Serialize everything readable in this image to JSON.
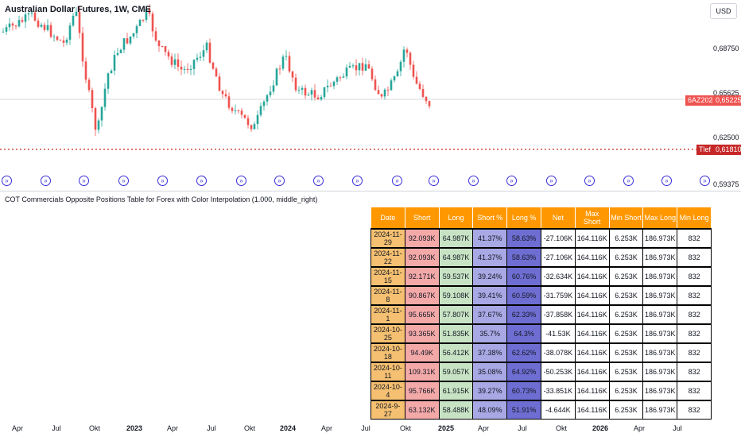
{
  "chart": {
    "title": "Australian Dollar Futures, 1W, CME",
    "currency_button": "USD",
    "price_axis": [
      "0,68750",
      "0,65625",
      "0,62500",
      "0,59375"
    ],
    "last_price_symbol": "6AZ2024",
    "last_price": "0,65225",
    "tlef_label": "Tlef",
    "tlef_price": "0,61810",
    "time_axis": [
      {
        "label": "Apr",
        "bold": false
      },
      {
        "label": "Jul",
        "bold": false
      },
      {
        "label": "Okt",
        "bold": false
      },
      {
        "label": "2023",
        "bold": true
      },
      {
        "label": "Apr",
        "bold": false
      },
      {
        "label": "Jul",
        "bold": false
      },
      {
        "label": "Okt",
        "bold": false
      },
      {
        "label": "2024",
        "bold": true
      },
      {
        "label": "Apr",
        "bold": false
      },
      {
        "label": "Jul",
        "bold": false
      },
      {
        "label": "Okt",
        "bold": false
      },
      {
        "label": "2025",
        "bold": true
      },
      {
        "label": "Apr",
        "bold": false
      },
      {
        "label": "Jul",
        "bold": false
      },
      {
        "label": "Okt",
        "bold": false
      },
      {
        "label": "2026",
        "bold": true
      },
      {
        "label": "Apr",
        "bold": false
      },
      {
        "label": "Jul",
        "bold": false
      }
    ],
    "colors": {
      "up": "#26a69a",
      "down": "#ef5350",
      "tlef": "#c62828",
      "arrow": "#3b2fd6"
    },
    "arrow_icon": "arrow-right-circle-icon"
  },
  "indicator": {
    "title": "COT Commercials Opposite Positions Table for Forex with Color Interpolation (1.000, middle_right)",
    "headers": [
      "Date",
      "Short",
      "Long",
      "Short %",
      "Long %",
      "Net",
      "Max Short",
      "Min Short",
      "Max Long",
      "Min Long"
    ],
    "rows": [
      [
        "2024-11-29",
        "92.093K",
        "64.987K",
        "41.37%",
        "58.63%",
        "-27.106K",
        "164.116K",
        "6.253K",
        "186.973K",
        "832"
      ],
      [
        "2024-11-22",
        "92.093K",
        "64.987K",
        "41.37%",
        "58.63%",
        "-27.106K",
        "164.116K",
        "6.253K",
        "186.973K",
        "832"
      ],
      [
        "2024-11-15",
        "92.171K",
        "59.537K",
        "39.24%",
        "60.76%",
        "-32.634K",
        "164.116K",
        "6.253K",
        "186.973K",
        "832"
      ],
      [
        "2024-11-8",
        "90.867K",
        "59.108K",
        "39.41%",
        "60.59%",
        "-31.759K",
        "164.116K",
        "6.253K",
        "186.973K",
        "832"
      ],
      [
        "2024-11-1",
        "95.665K",
        "57.807K",
        "37.67%",
        "62.33%",
        "-37.858K",
        "164.116K",
        "6.253K",
        "186.973K",
        "832"
      ],
      [
        "2024-10-25",
        "93.365K",
        "51.835K",
        "35.7%",
        "64.3%",
        "-41.53K",
        "164.116K",
        "6.253K",
        "186.973K",
        "832"
      ],
      [
        "2024-10-18",
        "94.49K",
        "56.412K",
        "37.38%",
        "62.62%",
        "-38.078K",
        "164.116K",
        "6.253K",
        "186.973K",
        "832"
      ],
      [
        "2024-10-11",
        "109.31K",
        "59.057K",
        "35.08%",
        "64.92%",
        "-50.253K",
        "164.116K",
        "6.253K",
        "186.973K",
        "832"
      ],
      [
        "2024-10-4",
        "95.766K",
        "61.915K",
        "39.27%",
        "60.73%",
        "-33.851K",
        "164.116K",
        "6.253K",
        "186.973K",
        "832"
      ],
      [
        "2024-9-27",
        "63.132K",
        "58.488K",
        "48.09%",
        "51.91%",
        "-4.644K",
        "164.116K",
        "6.253K",
        "186.973K",
        "832"
      ]
    ]
  }
}
